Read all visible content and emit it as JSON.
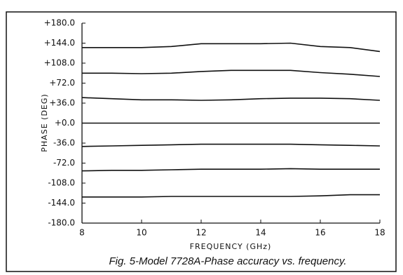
{
  "chart_data": {
    "type": "line",
    "title": "Fig. 5-Model 7728A-Phase accuracy vs. frequency.",
    "x_label": "FREQUENCY (GHz)",
    "y_label": "PHASE (DEG)",
    "x": [
      8,
      9,
      10,
      11,
      12,
      13,
      14,
      15,
      16,
      17,
      18
    ],
    "series": [
      {
        "color": "#111111",
        "values": [
          136,
          136,
          136,
          138,
          143,
          143,
          143,
          144,
          138,
          136,
          129
        ]
      },
      {
        "color": "#111111",
        "values": [
          90,
          90,
          89,
          90,
          93,
          95,
          95,
          95,
          91,
          88,
          84
        ]
      },
      {
        "color": "#111111",
        "values": [
          46,
          44,
          42,
          42,
          41,
          42,
          44,
          45,
          45,
          44,
          41
        ]
      },
      {
        "color": "#111111",
        "values": [
          0,
          0,
          0,
          0,
          0,
          0,
          0,
          0,
          0,
          0,
          0
        ]
      },
      {
        "color": "#111111",
        "values": [
          -42,
          -41,
          -40,
          -39,
          -38,
          -38,
          -38,
          -38,
          -39,
          -40,
          -41
        ]
      },
      {
        "color": "#111111",
        "values": [
          -86,
          -85,
          -85,
          -84,
          -83,
          -83,
          -83,
          -82,
          -83,
          -83,
          -83
        ]
      },
      {
        "color": "#111111",
        "values": [
          -133,
          -133,
          -133,
          -132,
          -132,
          -132,
          -132,
          -132,
          -131,
          -129,
          -129
        ]
      }
    ],
    "xlim": [
      8,
      18
    ],
    "xticks": [
      8,
      10,
      12,
      14,
      16,
      18
    ],
    "ylim": [
      -180,
      180
    ],
    "yticks": [
      {
        "value": 180,
        "label": "+180.0"
      },
      {
        "value": 144,
        "label": "+144.0"
      },
      {
        "value": 108,
        "label": "+108.0"
      },
      {
        "value": 72,
        "label": "+72.0"
      },
      {
        "value": 36,
        "label": "+36.0"
      },
      {
        "value": 0,
        "label": "+0.0"
      },
      {
        "value": -36,
        "label": "-36.0"
      },
      {
        "value": -72,
        "label": "-72.0"
      },
      {
        "value": -108,
        "label": "-108.0"
      },
      {
        "value": -144,
        "label": "-144.0"
      },
      {
        "value": -180,
        "label": "-180.0"
      }
    ],
    "grid": false
  }
}
